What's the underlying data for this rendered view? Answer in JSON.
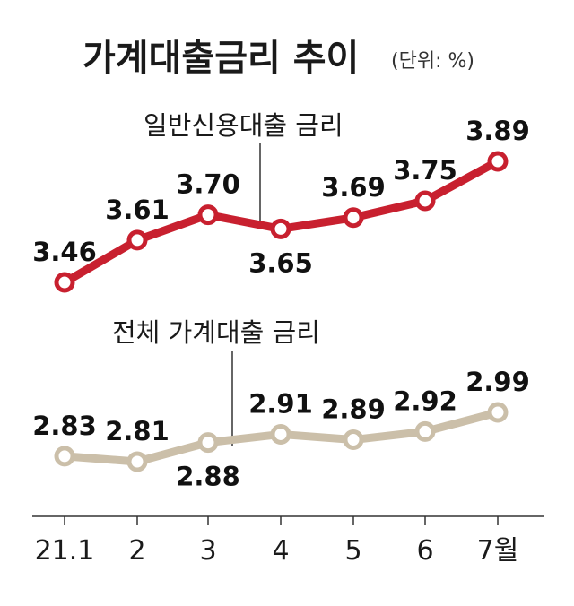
{
  "chart_data": {
    "type": "line",
    "title": "가계대출금리 추이",
    "unit": "(단위: %)",
    "categories": [
      "21.1",
      "2",
      "3",
      "4",
      "5",
      "6",
      "7월"
    ],
    "series": [
      {
        "name": "일반신용대출 금리",
        "values": [
          3.46,
          3.61,
          3.7,
          3.65,
          3.69,
          3.75,
          3.89
        ],
        "color": "#c8202f",
        "labels": [
          "3.46",
          "3.61",
          "3.70",
          "3.65",
          "3.69",
          "3.75",
          "3.89"
        ]
      },
      {
        "name": "전체 가계대출 금리",
        "values": [
          2.83,
          2.81,
          2.88,
          2.91,
          2.89,
          2.92,
          2.99
        ],
        "color": "#cbbfa9",
        "labels": [
          "2.83",
          "2.81",
          "2.88",
          "2.91",
          "2.89",
          "2.92",
          "2.99"
        ]
      }
    ],
    "xlabel": "",
    "ylabel": "",
    "grid": false,
    "legend": "inline"
  }
}
